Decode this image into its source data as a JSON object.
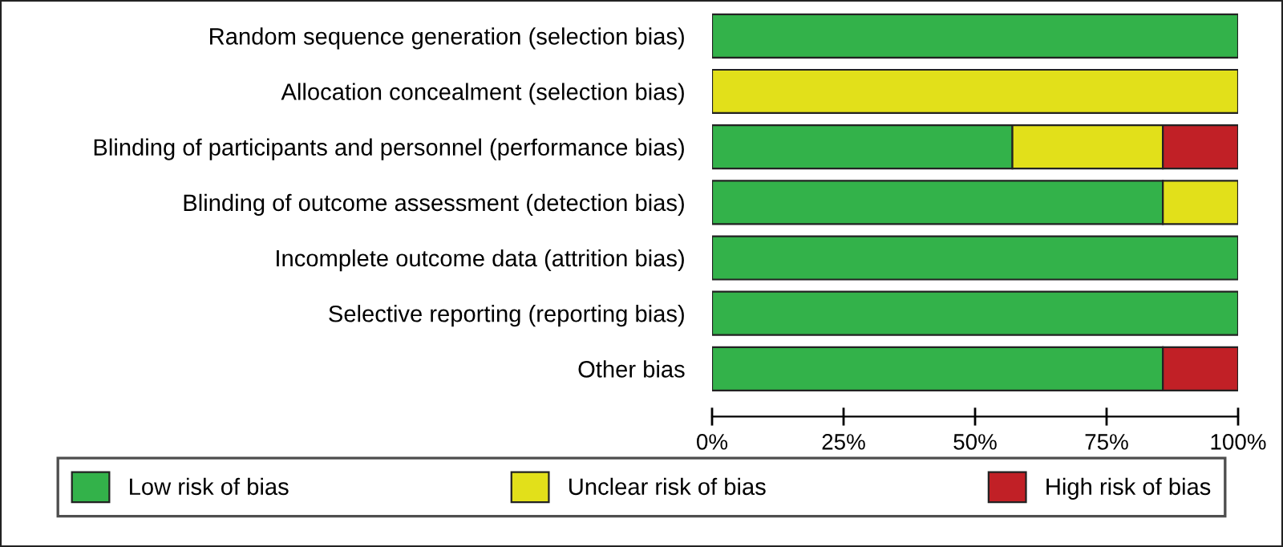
{
  "chart_data": {
    "type": "bar",
    "orientation": "horizontal",
    "stacked": true,
    "categories": [
      "Random sequence generation (selection bias)",
      "Allocation concealment (selection bias)",
      "Blinding of participants and personnel (performance bias)",
      "Blinding of outcome assessment (detection bias)",
      "Incomplete outcome data (attrition bias)",
      "Selective reporting (reporting bias)",
      "Other bias"
    ],
    "series": [
      {
        "name": "Low risk of bias",
        "color": "#33b24a",
        "values": [
          100,
          0,
          57.1,
          85.7,
          100,
          100,
          85.7
        ]
      },
      {
        "name": "Unclear risk of bias",
        "color": "#e2e01a",
        "values": [
          0,
          100,
          28.6,
          14.3,
          0,
          0,
          0
        ]
      },
      {
        "name": "High risk of bias",
        "color": "#c12026",
        "values": [
          0,
          0,
          14.3,
          0,
          0,
          0,
          14.3
        ]
      }
    ],
    "xlim": [
      0,
      100
    ],
    "xticks": [
      {
        "value": 0,
        "label": "0%"
      },
      {
        "value": 25,
        "label": "25%"
      },
      {
        "value": 50,
        "label": "50%"
      },
      {
        "value": 75,
        "label": "75%"
      },
      {
        "value": 100,
        "label": "100%"
      }
    ],
    "grid": false,
    "legend": "bottom"
  }
}
